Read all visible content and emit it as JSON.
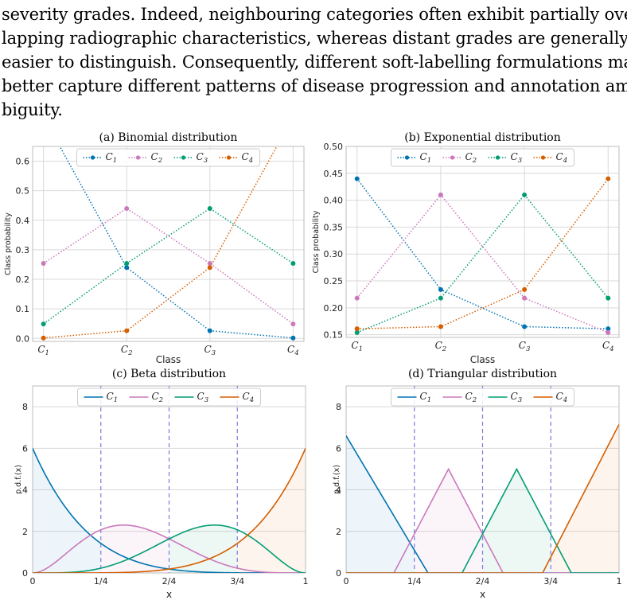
{
  "text": {
    "lines": [
      "severity grades. Indeed, neighbouring categories often exhibit partially over-",
      "lapping radiographic characteristics, whereas distant grades are generally",
      "easier to distinguish. Consequently, different soft-labelling formulations may",
      "better capture different patterns of disease progression and annotation am-",
      "biguity."
    ]
  },
  "colors": {
    "C1": "#0173b2",
    "C2": "#cc78bc",
    "C3": "#029e73",
    "C4": "#d55e00",
    "grid": "#d9d9d9",
    "boundary": "#7b7bdf"
  },
  "chart_data": [
    {
      "type": "line",
      "title": "(a) Binomial distribution",
      "xlabel": "Class",
      "ylabel": "Class probability",
      "categories": [
        "C1",
        "C2",
        "C3",
        "C4"
      ],
      "ylim": [
        -0.01,
        0.65
      ],
      "yticks": [
        "0.0",
        "0.1",
        "0.2",
        "0.3",
        "0.4",
        "0.5",
        "0.6"
      ],
      "legend": "top",
      "line_style": "dotted",
      "series": [
        {
          "name": "C1",
          "values": [
            0.75,
            0.24,
            0.026,
            0.0016
          ]
        },
        {
          "name": "C2",
          "values": [
            0.254,
            0.44,
            0.254,
            0.049
          ]
        },
        {
          "name": "C3",
          "values": [
            0.049,
            0.254,
            0.44,
            0.254
          ]
        },
        {
          "name": "C4",
          "values": [
            0.0016,
            0.026,
            0.24,
            0.75
          ]
        }
      ]
    },
    {
      "type": "line",
      "title": "(b) Exponential distribution",
      "xlabel": "Class",
      "ylabel": "Class probability",
      "categories": [
        "C1",
        "C2",
        "C3",
        "C4"
      ],
      "ylim": [
        0.145,
        0.5
      ],
      "yticks": [
        "0.15",
        "0.20",
        "0.25",
        "0.30",
        "0.35",
        "0.40",
        "0.45",
        "0.50"
      ],
      "legend": "top",
      "line_style": "dotted",
      "series": [
        {
          "name": "C1",
          "values": [
            0.44,
            0.234,
            0.165,
            0.161
          ]
        },
        {
          "name": "C2",
          "values": [
            0.218,
            0.41,
            0.218,
            0.154
          ]
        },
        {
          "name": "C3",
          "values": [
            0.154,
            0.218,
            0.41,
            0.218
          ]
        },
        {
          "name": "C4",
          "values": [
            0.161,
            0.165,
            0.234,
            0.44
          ]
        }
      ]
    },
    {
      "type": "area",
      "title": "(c) Beta distribution",
      "xlabel": "x",
      "ylabel": "p.d.f.(x)",
      "xlim": [
        0,
        1
      ],
      "xticks": [
        "0",
        "1/4",
        "2/4",
        "3/4",
        "1"
      ],
      "ylim": [
        0,
        9
      ],
      "yticks": [
        "0",
        "2",
        "4",
        "6",
        "8"
      ],
      "boundaries": [
        0.25,
        0.5,
        0.75
      ],
      "legend": "top",
      "series": [
        {
          "name": "C1",
          "kind": "beta",
          "params": [
            1,
            6
          ]
        },
        {
          "name": "C2",
          "kind": "beta",
          "params": [
            3,
            5
          ]
        },
        {
          "name": "C3",
          "kind": "beta",
          "params": [
            5,
            3
          ]
        },
        {
          "name": "C4",
          "kind": "beta",
          "params": [
            6,
            1
          ]
        }
      ]
    },
    {
      "type": "area",
      "title": "(d) Triangular distribution",
      "xlabel": "x",
      "ylabel": "p.d.f.(x)",
      "xlim": [
        0,
        1
      ],
      "xticks": [
        "0",
        "1/4",
        "2/4",
        "3/4",
        "1"
      ],
      "ylim": [
        0,
        9
      ],
      "yticks": [
        "0",
        "2",
        "4",
        "6",
        "8"
      ],
      "boundaries": [
        0.25,
        0.5,
        0.75
      ],
      "legend": "top",
      "series": [
        {
          "name": "C1",
          "kind": "triangle",
          "points": [
            [
              0,
              6.6
            ],
            [
              0.3,
              0
            ],
            [
              1,
              0
            ]
          ]
        },
        {
          "name": "C2",
          "kind": "triangle",
          "points": [
            [
              0,
              0
            ],
            [
              0.175,
              0
            ],
            [
              0.375,
              5
            ],
            [
              0.575,
              0
            ],
            [
              1,
              0
            ]
          ]
        },
        {
          "name": "C3",
          "kind": "triangle",
          "points": [
            [
              0,
              0
            ],
            [
              0.425,
              0
            ],
            [
              0.625,
              5
            ],
            [
              0.825,
              0
            ],
            [
              1,
              0
            ]
          ]
        },
        {
          "name": "C4",
          "kind": "triangle",
          "points": [
            [
              0,
              0
            ],
            [
              0.72,
              0
            ],
            [
              1,
              7.15
            ]
          ]
        }
      ]
    }
  ]
}
